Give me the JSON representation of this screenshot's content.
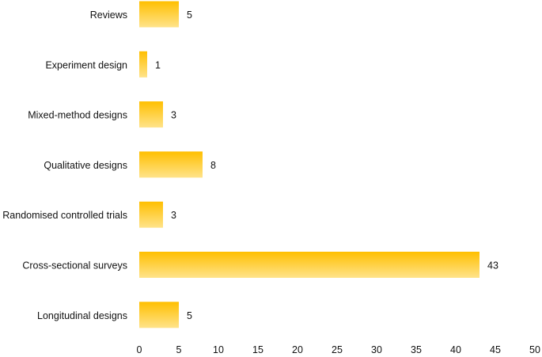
{
  "chart_data": {
    "type": "bar",
    "orientation": "horizontal",
    "categories": [
      "Reviews",
      "Experiment design",
      "Mixed-method designs",
      "Qualitative designs",
      "Randomised controlled trials",
      "Cross-sectional surveys",
      "Longitudinal designs"
    ],
    "values": [
      5,
      1,
      3,
      8,
      3,
      43,
      5
    ],
    "data_labels": [
      "5",
      "1",
      "3",
      "8",
      "3",
      "43",
      "5"
    ],
    "xlim": [
      0,
      50
    ],
    "xticks": [
      0,
      5,
      10,
      15,
      20,
      25,
      30,
      35,
      40,
      45,
      50
    ],
    "xtick_labels": [
      "0",
      "5",
      "10",
      "15",
      "20",
      "25",
      "30",
      "35",
      "40",
      "45",
      "50"
    ],
    "grid": false,
    "legend": "none",
    "bar_color_top": "#ffbf00",
    "bar_color_bottom": "#ffe38a"
  }
}
